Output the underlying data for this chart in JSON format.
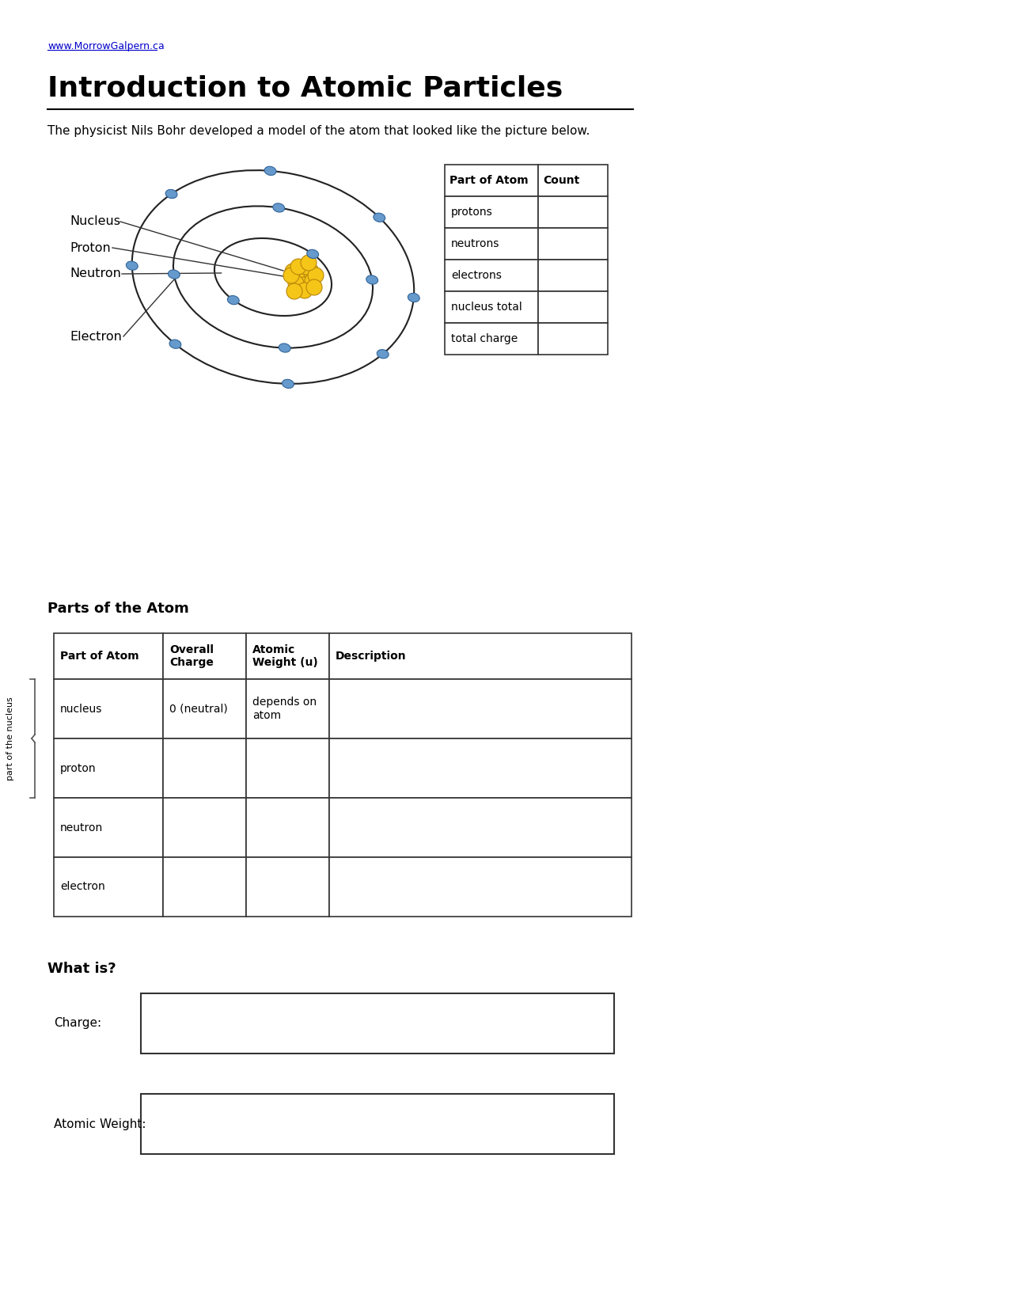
{
  "title": "Introduction to Atomic Particles",
  "website": "www.MorrowGalpern.ca",
  "subtitle": "The physicist Nils Bohr developed a model of the atom that looked like the picture below.",
  "parts_title": "Parts of the Atom",
  "what_is_title": "What is?",
  "labels": [
    "Nucleus",
    "Proton",
    "Neutron",
    "Electron"
  ],
  "count_table_headers": [
    "Part of Atom",
    "Count"
  ],
  "count_table_rows": [
    "protons",
    "neutrons",
    "electrons",
    "nucleus total",
    "total charge"
  ],
  "parts_table_headers": [
    "Part of Atom",
    "Overall\nCharge",
    "Atomic\nWeight (u)",
    "Description"
  ],
  "parts_table_rows": [
    [
      "nucleus",
      "0 (neutral)",
      "depends on\natom",
      ""
    ],
    [
      "proton",
      "",
      "",
      ""
    ],
    [
      "neutron",
      "",
      "",
      ""
    ],
    [
      "electron",
      "",
      "",
      ""
    ]
  ],
  "bg_color": "#ffffff",
  "text_color": "#000000",
  "link_color": "#0000cc",
  "electron_color": "#6699cc",
  "nucleus_color": "#f5c518",
  "nucleus_edge_color": "#b8860b",
  "orbit_color": "#222222",
  "table_border_color": "#333333",
  "line_color": "#333333"
}
